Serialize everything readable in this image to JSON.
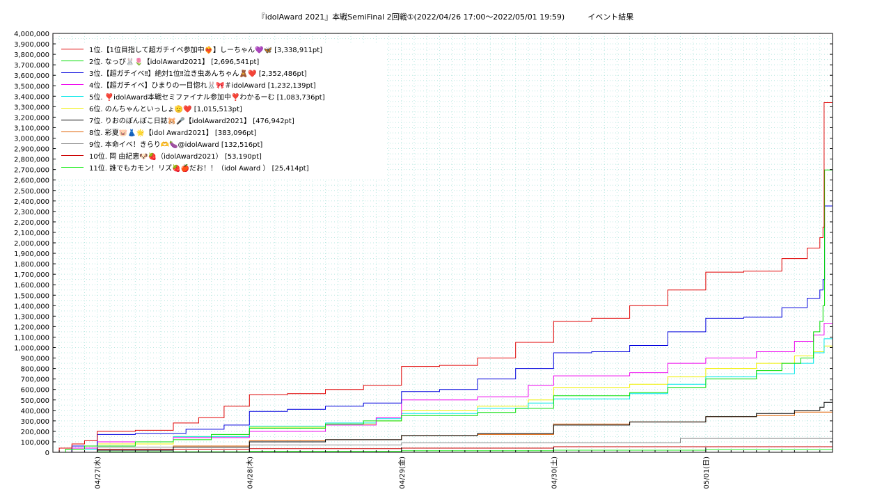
{
  "chart_data": {
    "type": "line",
    "title": "『idolAward 2021』本戦SemiFinal 2回戦①(2022/04/26 17:00～2022/05/01 19:59)　　　イベント結果",
    "xlabel": "",
    "ylabel": "",
    "ylim": [
      0,
      4000000
    ],
    "xlim": [
      "2022-04-26T17:00",
      "2022-05-01T20:00"
    ],
    "grid": true,
    "legend_position": "top-left",
    "y_ticks": [
      "0",
      "100,000",
      "200,000",
      "300,000",
      "400,000",
      "500,000",
      "600,000",
      "700,000",
      "800,000",
      "900,000",
      "1,000,000",
      "1,100,000",
      "1,200,000",
      "1,300,000",
      "1,400,000",
      "1,500,000",
      "1,600,000",
      "1,700,000",
      "1,800,000",
      "1,900,000",
      "2,000,000",
      "2,100,000",
      "2,200,000",
      "2,300,000",
      "2,400,000",
      "2,500,000",
      "2,600,000",
      "2,700,000",
      "2,800,000",
      "2,900,000",
      "3,000,000",
      "3,100,000",
      "3,200,000",
      "3,300,000",
      "3,400,000",
      "3,500,000",
      "3,600,000",
      "3,700,000",
      "3,800,000",
      "3,900,000",
      "4,000,000"
    ],
    "x_ticks": [
      {
        "x": "2022-04-27T00:00",
        "label": "04/27(水)"
      },
      {
        "x": "2022-04-28T00:00",
        "label": "04/28(木)"
      },
      {
        "x": "2022-04-29T00:00",
        "label": "04/29(金)"
      },
      {
        "x": "2022-04-30T00:00",
        "label": "04/30(土)"
      },
      {
        "x": "2022-05-01T00:00",
        "label": "05/01(日)"
      }
    ],
    "series": [
      {
        "name": "1位.【1位目指して超ガチイベ参加中❤️‍🔥】しーちゃん💜🦋 [3,338,911pt]",
        "color": "#e00000",
        "x": [
          "2022-04-26T17:00",
          "2022-04-26T18:00",
          "2022-04-26T20:00",
          "2022-04-26T22:00",
          "2022-04-27T00:00",
          "2022-04-27T06:00",
          "2022-04-27T12:00",
          "2022-04-27T16:00",
          "2022-04-27T20:00",
          "2022-04-28T00:00",
          "2022-04-28T06:00",
          "2022-04-28T12:00",
          "2022-04-28T18:00",
          "2022-04-29T00:00",
          "2022-04-29T06:00",
          "2022-04-29T12:00",
          "2022-04-29T18:00",
          "2022-04-30T00:00",
          "2022-04-30T06:00",
          "2022-04-30T12:00",
          "2022-04-30T18:00",
          "2022-05-01T00:00",
          "2022-05-01T06:00",
          "2022-05-01T12:00",
          "2022-05-01T16:00",
          "2022-05-01T18:00",
          "2022-05-01T18:30",
          "2022-05-01T18:40",
          "2022-05-01T20:00"
        ],
        "y": [
          0,
          40000,
          80000,
          110000,
          200000,
          210000,
          280000,
          330000,
          440000,
          550000,
          560000,
          600000,
          640000,
          820000,
          830000,
          900000,
          1050000,
          1250000,
          1280000,
          1400000,
          1550000,
          1720000,
          1730000,
          1850000,
          1950000,
          2050000,
          2150000,
          3338911,
          3338911
        ]
      },
      {
        "name": "2位. なっぴ🐰🌷【idolAward2021】 [2,696,541pt]",
        "color": "#00dd00",
        "x": [
          "2022-04-26T17:00",
          "2022-04-26T19:00",
          "2022-04-26T22:00",
          "2022-04-27T06:00",
          "2022-04-27T12:00",
          "2022-04-27T18:00",
          "2022-04-28T00:00",
          "2022-04-28T12:00",
          "2022-04-28T18:00",
          "2022-04-29T00:00",
          "2022-04-29T12:00",
          "2022-04-29T18:00",
          "2022-04-30T00:00",
          "2022-04-30T12:00",
          "2022-04-30T18:00",
          "2022-05-01T00:00",
          "2022-05-01T08:00",
          "2022-05-01T12:00",
          "2022-05-01T15:00",
          "2022-05-01T17:00",
          "2022-05-01T18:00",
          "2022-05-01T18:30",
          "2022-05-01T18:45",
          "2022-05-01T20:00"
        ],
        "y": [
          0,
          30000,
          60000,
          100000,
          120000,
          170000,
          230000,
          270000,
          300000,
          350000,
          380000,
          420000,
          540000,
          570000,
          620000,
          700000,
          780000,
          850000,
          900000,
          1150000,
          1250000,
          1400000,
          2696541,
          2696541
        ]
      },
      {
        "name": "3位.【超ガチイベ‼︎】絶対1位‼︎泣き虫あんちゃん🧸❤️ [2,352,486pt]",
        "color": "#0000dd",
        "x": [
          "2022-04-26T17:00",
          "2022-04-26T20:00",
          "2022-04-27T00:00",
          "2022-04-27T06:00",
          "2022-04-27T14:00",
          "2022-04-27T20:00",
          "2022-04-28T00:00",
          "2022-04-28T06:00",
          "2022-04-28T12:00",
          "2022-04-28T18:00",
          "2022-04-29T00:00",
          "2022-04-29T06:00",
          "2022-04-29T12:00",
          "2022-04-29T18:00",
          "2022-04-30T00:00",
          "2022-04-30T06:00",
          "2022-04-30T12:00",
          "2022-04-30T18:00",
          "2022-05-01T00:00",
          "2022-05-01T06:00",
          "2022-05-01T12:00",
          "2022-05-01T16:00",
          "2022-05-01T18:00",
          "2022-05-01T18:30",
          "2022-05-01T18:45",
          "2022-05-01T20:00"
        ],
        "y": [
          0,
          60000,
          170000,
          180000,
          220000,
          260000,
          390000,
          410000,
          440000,
          470000,
          580000,
          600000,
          700000,
          800000,
          950000,
          960000,
          1020000,
          1150000,
          1280000,
          1290000,
          1380000,
          1470000,
          1550000,
          1650000,
          2352486,
          2352486
        ]
      },
      {
        "name": "4位.【超ガチイベ】ひまりの一目惚れ🐰🎀＃idolAward [1,232,139pt]",
        "color": "#ee00ee",
        "x": [
          "2022-04-26T17:00",
          "2022-04-26T20:00",
          "2022-04-27T00:00",
          "2022-04-27T12:00",
          "2022-04-28T00:00",
          "2022-04-28T12:00",
          "2022-04-28T20:00",
          "2022-04-29T00:00",
          "2022-04-29T12:00",
          "2022-04-29T20:00",
          "2022-04-30T00:00",
          "2022-04-30T12:00",
          "2022-04-30T18:00",
          "2022-05-01T00:00",
          "2022-05-01T08:00",
          "2022-05-01T14:00",
          "2022-05-01T17:00",
          "2022-05-01T18:40",
          "2022-05-01T20:00"
        ],
        "y": [
          0,
          40000,
          100000,
          140000,
          200000,
          260000,
          330000,
          500000,
          530000,
          640000,
          730000,
          760000,
          850000,
          900000,
          960000,
          1060000,
          1120000,
          1232139,
          1232139
        ]
      },
      {
        "name": "5位. ❣️idolAward本戦セミファイナル参加中❣️わかるーむ [1,083,736pt]",
        "color": "#00e8e8",
        "x": [
          "2022-04-26T17:00",
          "2022-04-26T20:00",
          "2022-04-27T00:00",
          "2022-04-27T12:00",
          "2022-04-28T00:00",
          "2022-04-28T12:00",
          "2022-04-28T20:00",
          "2022-04-29T00:00",
          "2022-04-29T12:00",
          "2022-04-29T20:00",
          "2022-04-30T00:00",
          "2022-04-30T12:00",
          "2022-04-30T18:00",
          "2022-05-01T00:00",
          "2022-05-01T08:00",
          "2022-05-01T14:00",
          "2022-05-01T17:00",
          "2022-05-01T18:40",
          "2022-05-01T20:00"
        ],
        "y": [
          0,
          30000,
          100000,
          150000,
          250000,
          280000,
          320000,
          370000,
          420000,
          470000,
          510000,
          560000,
          650000,
          720000,
          750000,
          850000,
          950000,
          1083736,
          1083736
        ]
      },
      {
        "name": "6位. のんちゃんといっしょ🫡❤️ [1,015,513pt]",
        "color": "#f0f000",
        "x": [
          "2022-04-26T17:00",
          "2022-04-26T20:00",
          "2022-04-27T00:00",
          "2022-04-27T12:00",
          "2022-04-28T00:00",
          "2022-04-28T12:00",
          "2022-04-28T20:00",
          "2022-04-29T00:00",
          "2022-04-29T12:00",
          "2022-04-29T20:00",
          "2022-04-30T00:00",
          "2022-04-30T12:00",
          "2022-04-30T18:00",
          "2022-05-01T00:00",
          "2022-05-01T08:00",
          "2022-05-01T14:00",
          "2022-05-01T17:00",
          "2022-05-01T18:40",
          "2022-05-01T20:00"
        ],
        "y": [
          0,
          30000,
          80000,
          150000,
          240000,
          270000,
          300000,
          400000,
          440000,
          500000,
          620000,
          650000,
          720000,
          800000,
          850000,
          920000,
          960000,
          1015513,
          1015513
        ]
      },
      {
        "name": "7位. りおのぽんぽこ日誌🐹🎤【idolAward2021】 [476,942pt]",
        "color": "#000000",
        "x": [
          "2022-04-26T17:00",
          "2022-04-27T00:00",
          "2022-04-27T12:00",
          "2022-04-28T00:00",
          "2022-04-28T12:00",
          "2022-04-29T00:00",
          "2022-04-29T12:00",
          "2022-04-30T00:00",
          "2022-04-30T12:00",
          "2022-05-01T00:00",
          "2022-05-01T08:00",
          "2022-05-01T14:00",
          "2022-05-01T18:00",
          "2022-05-01T18:40",
          "2022-05-01T20:00"
        ],
        "y": [
          0,
          20000,
          50000,
          100000,
          120000,
          160000,
          180000,
          260000,
          290000,
          340000,
          370000,
          400000,
          430000,
          476942,
          476942
        ]
      },
      {
        "name": "8位. 彩夏🐷👗🌟【idol Award2021】 [383,096pt]",
        "color": "#e06000",
        "x": [
          "2022-04-26T17:00",
          "2022-04-27T00:00",
          "2022-04-27T12:00",
          "2022-04-28T00:00",
          "2022-04-28T12:00",
          "2022-04-29T00:00",
          "2022-04-29T12:00",
          "2022-04-30T00:00",
          "2022-04-30T12:00",
          "2022-05-01T00:00",
          "2022-05-01T08:00",
          "2022-05-01T14:00",
          "2022-05-01T20:00"
        ],
        "y": [
          0,
          20000,
          60000,
          110000,
          120000,
          160000,
          170000,
          270000,
          290000,
          340000,
          350000,
          383096,
          383096
        ]
      },
      {
        "name": "9位. 本命イベ！きらり🫶🍆@idolAward [132,516pt]",
        "color": "#888888",
        "x": [
          "2022-04-26T17:00",
          "2022-04-27T00:00",
          "2022-04-28T00:00",
          "2022-04-29T00:00",
          "2022-04-30T00:00",
          "2022-04-30T20:00",
          "2022-05-01T20:00"
        ],
        "y": [
          0,
          50000,
          70000,
          90000,
          90000,
          132516,
          132516
        ]
      },
      {
        "name": "10位. 岡 由紀恵🐶🍓（idolAward2021） [53,190pt]",
        "color": "#cc0000",
        "x": [
          "2022-04-26T17:00",
          "2022-04-27T00:00",
          "2022-04-28T00:00",
          "2022-04-29T00:00",
          "2022-04-30T00:00",
          "2022-05-01T00:00",
          "2022-05-01T20:00"
        ],
        "y": [
          0,
          30000,
          35000,
          40000,
          53190,
          53190,
          53190
        ]
      },
      {
        "name": "11位. 誰でもカモン！リズ🍓🍎だお！！（idol Award ） [25,414pt]",
        "color": "#22ee22",
        "x": [
          "2022-04-26T17:00",
          "2022-04-27T00:00",
          "2022-04-28T00:00",
          "2022-04-29T00:00",
          "2022-04-30T00:00",
          "2022-05-01T00:00",
          "2022-05-01T20:00"
        ],
        "y": [
          0,
          5000,
          10000,
          15000,
          20000,
          25414,
          25414
        ]
      }
    ]
  }
}
